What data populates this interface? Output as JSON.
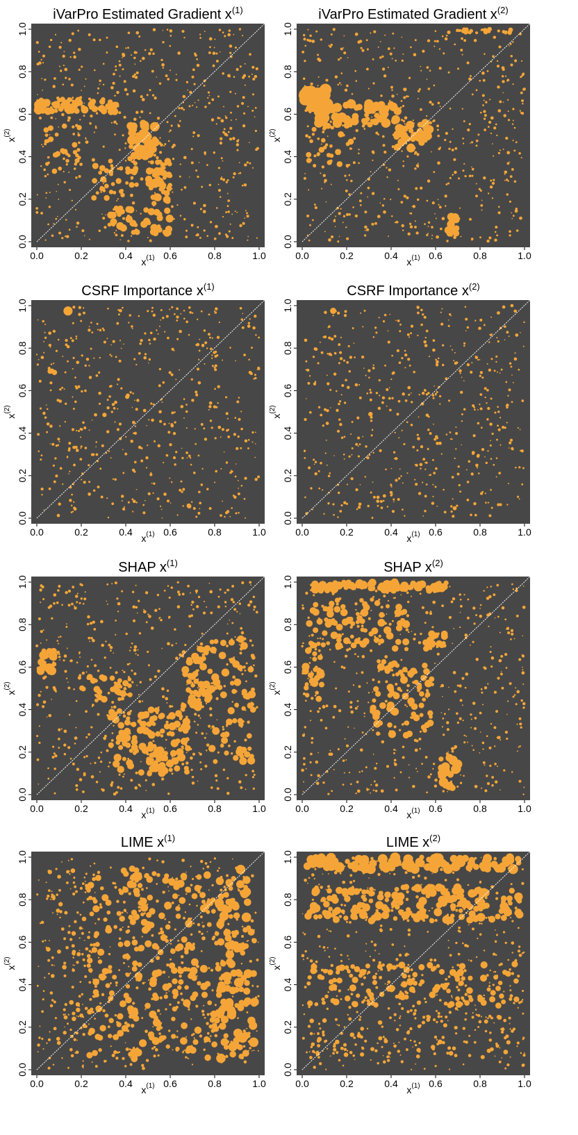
{
  "colors": {
    "panel_bg": "#474747",
    "point": "#F5A537",
    "diagonal": "#ffffff",
    "axis": "#000000"
  },
  "chart_data": [
    {
      "type": "scatter",
      "title": "iVarPro Estimated Gradient",
      "title_var": "x",
      "title_sup": "(1)",
      "xlabel": "x",
      "xlabel_sup": "(1)",
      "ylabel": "x",
      "ylabel_sup": "(2)",
      "xlim": [
        0,
        1
      ],
      "ylim": [
        0,
        1
      ],
      "xticks": [
        "0.0",
        "0.2",
        "0.4",
        "0.6",
        "0.8",
        "1.0"
      ],
      "yticks": [
        "0.0",
        "0.2",
        "0.4",
        "0.6",
        "0.8",
        "1.0"
      ],
      "reference_line": "y = x",
      "grid": false,
      "point_size_encodes": "importance",
      "hotspots": [
        {
          "x": 0.18,
          "y": 0.64,
          "w": 0.18,
          "h": 0.03,
          "size": 5,
          "count": 60
        },
        {
          "x": 0.48,
          "y": 0.48,
          "w": 0.06,
          "h": 0.08,
          "size": 6,
          "count": 50
        },
        {
          "x": 0.55,
          "y": 0.28,
          "w": 0.05,
          "h": 0.1,
          "size": 5,
          "count": 45
        },
        {
          "x": 0.45,
          "y": 0.1,
          "w": 0.15,
          "h": 0.06,
          "size": 5,
          "count": 45
        },
        {
          "x": 0.35,
          "y": 0.3,
          "w": 0.1,
          "h": 0.1,
          "size": 4,
          "count": 40
        },
        {
          "x": 0.12,
          "y": 0.45,
          "w": 0.08,
          "h": 0.12,
          "size": 3.5,
          "count": 30
        }
      ]
    },
    {
      "type": "scatter",
      "title": "iVarPro Estimated Gradient",
      "title_var": "x",
      "title_sup": "(2)",
      "xlabel": "x",
      "xlabel_sup": "(1)",
      "ylabel": "x",
      "ylabel_sup": "(2)",
      "xlim": [
        0,
        1
      ],
      "ylim": [
        0,
        1
      ],
      "xticks": [
        "0.0",
        "0.2",
        "0.4",
        "0.6",
        "0.8",
        "1.0"
      ],
      "yticks": [
        "0.0",
        "0.2",
        "0.4",
        "0.6",
        "0.8",
        "1.0"
      ],
      "reference_line": "y = x",
      "grid": false,
      "point_size_encodes": "importance",
      "hotspots": [
        {
          "x": 0.06,
          "y": 0.67,
          "w": 0.06,
          "h": 0.05,
          "size": 8,
          "count": 40
        },
        {
          "x": 0.25,
          "y": 0.6,
          "w": 0.18,
          "h": 0.05,
          "size": 6,
          "count": 60
        },
        {
          "x": 0.5,
          "y": 0.5,
          "w": 0.08,
          "h": 0.06,
          "size": 5.5,
          "count": 40
        },
        {
          "x": 0.68,
          "y": 0.08,
          "w": 0.03,
          "h": 0.05,
          "size": 5,
          "count": 15
        },
        {
          "x": 0.8,
          "y": 0.99,
          "w": 0.15,
          "h": 0.01,
          "size": 3,
          "count": 25
        },
        {
          "x": 0.12,
          "y": 0.45,
          "w": 0.1,
          "h": 0.1,
          "size": 4,
          "count": 30
        }
      ]
    },
    {
      "type": "scatter",
      "title": "CSRF Importance",
      "title_var": "x",
      "title_sup": "(1)",
      "xlabel": "x",
      "xlabel_sup": "(1)",
      "ylabel": "x",
      "ylabel_sup": "(2)",
      "xlim": [
        0,
        1
      ],
      "ylim": [
        0,
        1
      ],
      "xticks": [
        "0.0",
        "0.2",
        "0.4",
        "0.6",
        "0.8",
        "1.0"
      ],
      "yticks": [
        "0.0",
        "0.2",
        "0.4",
        "0.6",
        "0.8",
        "1.0"
      ],
      "reference_line": "y = x",
      "grid": false,
      "point_size_encodes": "importance",
      "hotspots": [
        {
          "x": 0.14,
          "y": 0.975,
          "w": 0.004,
          "h": 0.004,
          "size": 6,
          "count": 1
        },
        {
          "x": 0.07,
          "y": 0.69,
          "w": 0.01,
          "h": 0.01,
          "size": 3.5,
          "count": 3
        },
        {
          "x": 0.4,
          "y": 0.57,
          "w": 0.01,
          "h": 0.01,
          "size": 3,
          "count": 2
        },
        {
          "x": 0.31,
          "y": 0.48,
          "w": 0.01,
          "h": 0.01,
          "size": 3,
          "count": 2
        },
        {
          "x": 0.68,
          "y": 0.05,
          "w": 0.01,
          "h": 0.01,
          "size": 3,
          "count": 2
        }
      ]
    },
    {
      "type": "scatter",
      "title": "CSRF Importance",
      "title_var": "x",
      "title_sup": "(2)",
      "xlabel": "x",
      "xlabel_sup": "(1)",
      "ylabel": "x",
      "ylabel_sup": "(2)",
      "xlim": [
        0,
        1
      ],
      "ylim": [
        0,
        1
      ],
      "xticks": [
        "0.0",
        "0.2",
        "0.4",
        "0.6",
        "0.8",
        "1.0"
      ],
      "yticks": [
        "0.0",
        "0.2",
        "0.4",
        "0.6",
        "0.8",
        "1.0"
      ],
      "reference_line": "y = x",
      "grid": false,
      "point_size_encodes": "importance",
      "hotspots": [
        {
          "x": 0.14,
          "y": 0.975,
          "w": 0.004,
          "h": 0.004,
          "size": 6,
          "count": 1
        },
        {
          "x": 0.4,
          "y": 0.57,
          "w": 0.01,
          "h": 0.01,
          "size": 3,
          "count": 2
        },
        {
          "x": 0.31,
          "y": 0.48,
          "w": 0.01,
          "h": 0.01,
          "size": 3,
          "count": 2
        },
        {
          "x": 0.68,
          "y": 0.05,
          "w": 0.01,
          "h": 0.01,
          "size": 3,
          "count": 2
        }
      ]
    },
    {
      "type": "scatter",
      "title": "SHAP",
      "title_var": "x",
      "title_sup": "(1)",
      "xlabel": "x",
      "xlabel_sup": "(1)",
      "ylabel": "x",
      "ylabel_sup": "(2)",
      "xlim": [
        0,
        1
      ],
      "ylim": [
        0,
        1
      ],
      "xticks": [
        "0.0",
        "0.2",
        "0.4",
        "0.6",
        "0.8",
        "1.0"
      ],
      "yticks": [
        "0.0",
        "0.2",
        "0.4",
        "0.6",
        "0.8",
        "1.0"
      ],
      "reference_line": "y = x",
      "grid": false,
      "point_size_encodes": "importance",
      "hotspots": [
        {
          "x": 0.04,
          "y": 0.63,
          "w": 0.04,
          "h": 0.05,
          "size": 6,
          "count": 20
        },
        {
          "x": 0.5,
          "y": 0.25,
          "w": 0.18,
          "h": 0.15,
          "size": 5,
          "count": 110
        },
        {
          "x": 0.72,
          "y": 0.55,
          "w": 0.06,
          "h": 0.14,
          "size": 5,
          "count": 50
        },
        {
          "x": 0.88,
          "y": 0.45,
          "w": 0.1,
          "h": 0.3,
          "size": 5,
          "count": 60
        },
        {
          "x": 0.3,
          "y": 0.5,
          "w": 0.12,
          "h": 0.06,
          "size": 4.5,
          "count": 35
        },
        {
          "x": 0.55,
          "y": 0.15,
          "w": 0.05,
          "h": 0.06,
          "size": 6,
          "count": 20
        }
      ]
    },
    {
      "type": "scatter",
      "title": "SHAP",
      "title_var": "x",
      "title_sup": "(2)",
      "xlabel": "x",
      "xlabel_sup": "(1)",
      "ylabel": "x",
      "ylabel_sup": "(2)",
      "xlim": [
        0,
        1
      ],
      "ylim": [
        0,
        1
      ],
      "xticks": [
        "0.0",
        "0.2",
        "0.4",
        "0.6",
        "0.8",
        "1.0"
      ],
      "yticks": [
        "0.0",
        "0.2",
        "0.4",
        "0.6",
        "0.8",
        "1.0"
      ],
      "reference_line": "y = x",
      "grid": false,
      "point_size_encodes": "importance",
      "hotspots": [
        {
          "x": 0.35,
          "y": 0.98,
          "w": 0.3,
          "h": 0.02,
          "size": 5.5,
          "count": 80
        },
        {
          "x": 0.25,
          "y": 0.8,
          "w": 0.22,
          "h": 0.12,
          "size": 5,
          "count": 80
        },
        {
          "x": 0.45,
          "y": 0.45,
          "w": 0.14,
          "h": 0.18,
          "size": 5,
          "count": 70
        },
        {
          "x": 0.66,
          "y": 0.1,
          "w": 0.04,
          "h": 0.08,
          "size": 6,
          "count": 20
        },
        {
          "x": 0.05,
          "y": 0.6,
          "w": 0.04,
          "h": 0.15,
          "size": 5,
          "count": 25
        },
        {
          "x": 0.6,
          "y": 0.72,
          "w": 0.05,
          "h": 0.04,
          "size": 4.5,
          "count": 20
        }
      ]
    },
    {
      "type": "scatter",
      "title": "LIME",
      "title_var": "x",
      "title_sup": "(1)",
      "xlabel": "x",
      "xlabel_sup": "(1)",
      "ylabel": "x",
      "ylabel_sup": "(2)",
      "xlim": [
        0,
        1
      ],
      "ylim": [
        0,
        1
      ],
      "xticks": [
        "0.0",
        "0.2",
        "0.4",
        "0.6",
        "0.8",
        "1.0"
      ],
      "yticks": [
        "0.0",
        "0.2",
        "0.4",
        "0.6",
        "0.8",
        "1.0"
      ],
      "reference_line": "y = x",
      "grid": false,
      "point_size_encodes": "importance",
      "hotspots": [
        {
          "x": 0.65,
          "y": 0.5,
          "w": 0.25,
          "h": 0.45,
          "size": 5,
          "count": 220
        },
        {
          "x": 0.9,
          "y": 0.5,
          "w": 0.08,
          "h": 0.45,
          "size": 6,
          "count": 80
        },
        {
          "x": 0.35,
          "y": 0.5,
          "w": 0.12,
          "h": 0.45,
          "size": 4.5,
          "count": 90
        },
        {
          "x": 0.15,
          "y": 0.5,
          "w": 0.1,
          "h": 0.45,
          "size": 3,
          "count": 60
        }
      ]
    },
    {
      "type": "scatter",
      "title": "LIME",
      "title_var": "x",
      "title_sup": "(2)",
      "xlabel": "x",
      "xlabel_sup": "(1)",
      "ylabel": "x",
      "ylabel_sup": "(2)",
      "xlim": [
        0,
        1
      ],
      "ylim": [
        0,
        1
      ],
      "xticks": [
        "0.0",
        "0.2",
        "0.4",
        "0.6",
        "0.8",
        "1.0"
      ],
      "yticks": [
        "0.0",
        "0.2",
        "0.4",
        "0.6",
        "0.8",
        "1.0"
      ],
      "reference_line": "y = x",
      "grid": false,
      "point_size_encodes": "importance",
      "hotspots": [
        {
          "x": 0.5,
          "y": 0.97,
          "w": 0.48,
          "h": 0.03,
          "size": 6.5,
          "count": 120
        },
        {
          "x": 0.5,
          "y": 0.78,
          "w": 0.48,
          "h": 0.08,
          "size": 5.5,
          "count": 180
        },
        {
          "x": 0.5,
          "y": 0.4,
          "w": 0.48,
          "h": 0.1,
          "size": 4.5,
          "count": 130
        },
        {
          "x": 0.5,
          "y": 0.15,
          "w": 0.48,
          "h": 0.1,
          "size": 3,
          "count": 80
        }
      ]
    }
  ]
}
